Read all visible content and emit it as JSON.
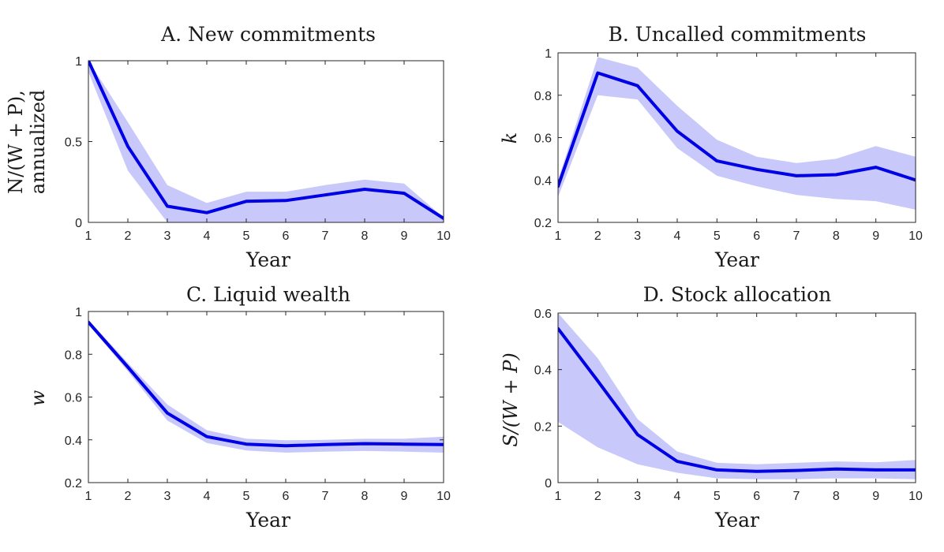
{
  "chart_data": [
    {
      "type": "line",
      "title": "A. New commitments",
      "xlabel": "Year",
      "ylabel_lines": [
        "N/(W + P),",
        "annualized"
      ],
      "xlim": [
        1,
        10
      ],
      "ylim": [
        0,
        1
      ],
      "xticks": [
        1,
        2,
        3,
        4,
        5,
        6,
        7,
        8,
        9,
        10
      ],
      "yticks": [
        0,
        0.5,
        1
      ],
      "ytick_labels": [
        "0",
        "0.5",
        "1"
      ],
      "x": [
        1,
        2,
        3,
        4,
        5,
        6,
        7,
        8,
        9,
        10
      ],
      "series": [
        {
          "values": [
            1.0,
            0.47,
            0.1,
            0.06,
            0.13,
            0.135,
            0.17,
            0.205,
            0.18,
            0.025
          ],
          "band_upper": [
            1.0,
            0.62,
            0.23,
            0.12,
            0.19,
            0.19,
            0.23,
            0.265,
            0.24,
            0.03
          ],
          "band_lower": [
            0.93,
            0.32,
            0.0,
            0.0,
            0.0,
            0.0,
            0.0,
            0.0,
            0.0,
            0.0
          ]
        }
      ]
    },
    {
      "type": "line",
      "title": "B. Uncalled commitments",
      "xlabel": "Year",
      "ylabel_lines": [
        "k"
      ],
      "xlim": [
        1,
        10
      ],
      "ylim": [
        0.2,
        1
      ],
      "xticks": [
        1,
        2,
        3,
        4,
        5,
        6,
        7,
        8,
        9,
        10
      ],
      "yticks": [
        0.2,
        0.4,
        0.6,
        0.8,
        1
      ],
      "ytick_labels": [
        "0.2",
        "0.4",
        "0.6",
        "0.8",
        "1"
      ],
      "x": [
        1,
        2,
        3,
        4,
        5,
        6,
        7,
        8,
        9,
        10
      ],
      "series": [
        {
          "values": [
            0.37,
            0.905,
            0.845,
            0.63,
            0.49,
            0.45,
            0.42,
            0.425,
            0.46,
            0.4
          ],
          "band_upper": [
            0.4,
            0.98,
            0.93,
            0.75,
            0.59,
            0.51,
            0.48,
            0.5,
            0.56,
            0.51
          ],
          "band_lower": [
            0.32,
            0.8,
            0.78,
            0.55,
            0.42,
            0.37,
            0.33,
            0.31,
            0.3,
            0.26
          ]
        }
      ]
    },
    {
      "type": "line",
      "title": "C. Liquid wealth",
      "xlabel": "Year",
      "ylabel_lines": [
        "w"
      ],
      "xlim": [
        1,
        10
      ],
      "ylim": [
        0.2,
        1
      ],
      "xticks": [
        1,
        2,
        3,
        4,
        5,
        6,
        7,
        8,
        9,
        10
      ],
      "yticks": [
        0.2,
        0.4,
        0.6,
        0.8,
        1
      ],
      "ytick_labels": [
        "0.2",
        "0.4",
        "0.6",
        "0.8",
        "1"
      ],
      "x": [
        1,
        2,
        3,
        4,
        5,
        6,
        7,
        8,
        9,
        10
      ],
      "series": [
        {
          "values": [
            0.95,
            0.74,
            0.525,
            0.415,
            0.38,
            0.372,
            0.378,
            0.382,
            0.38,
            0.378
          ],
          "band_upper": [
            0.96,
            0.76,
            0.565,
            0.445,
            0.405,
            0.398,
            0.4,
            0.405,
            0.405,
            0.415
          ],
          "band_lower": [
            0.94,
            0.72,
            0.49,
            0.385,
            0.35,
            0.34,
            0.345,
            0.348,
            0.345,
            0.34
          ]
        }
      ]
    },
    {
      "type": "line",
      "title": "D. Stock allocation",
      "xlabel": "Year",
      "ylabel_lines": [
        "S/(W + P)"
      ],
      "xlim": [
        1,
        10
      ],
      "ylim": [
        0,
        0.6
      ],
      "xticks": [
        1,
        2,
        3,
        4,
        5,
        6,
        7,
        8,
        9,
        10
      ],
      "yticks": [
        0,
        0.2,
        0.4,
        0.6
      ],
      "ytick_labels": [
        "0",
        "0.2",
        "0.4",
        "0.6"
      ],
      "x": [
        1,
        2,
        3,
        4,
        5,
        6,
        7,
        8,
        9,
        10
      ],
      "series": [
        {
          "values": [
            0.545,
            0.36,
            0.17,
            0.075,
            0.045,
            0.04,
            0.043,
            0.048,
            0.045,
            0.045
          ],
          "band_upper": [
            0.6,
            0.44,
            0.225,
            0.11,
            0.07,
            0.065,
            0.07,
            0.075,
            0.072,
            0.08
          ],
          "band_lower": [
            0.215,
            0.125,
            0.065,
            0.035,
            0.015,
            0.012,
            0.012,
            0.015,
            0.015,
            0.012
          ]
        }
      ]
    }
  ],
  "colors": {
    "line": "#0000e6",
    "band": "#c8c8fa",
    "axis": "#262626"
  }
}
